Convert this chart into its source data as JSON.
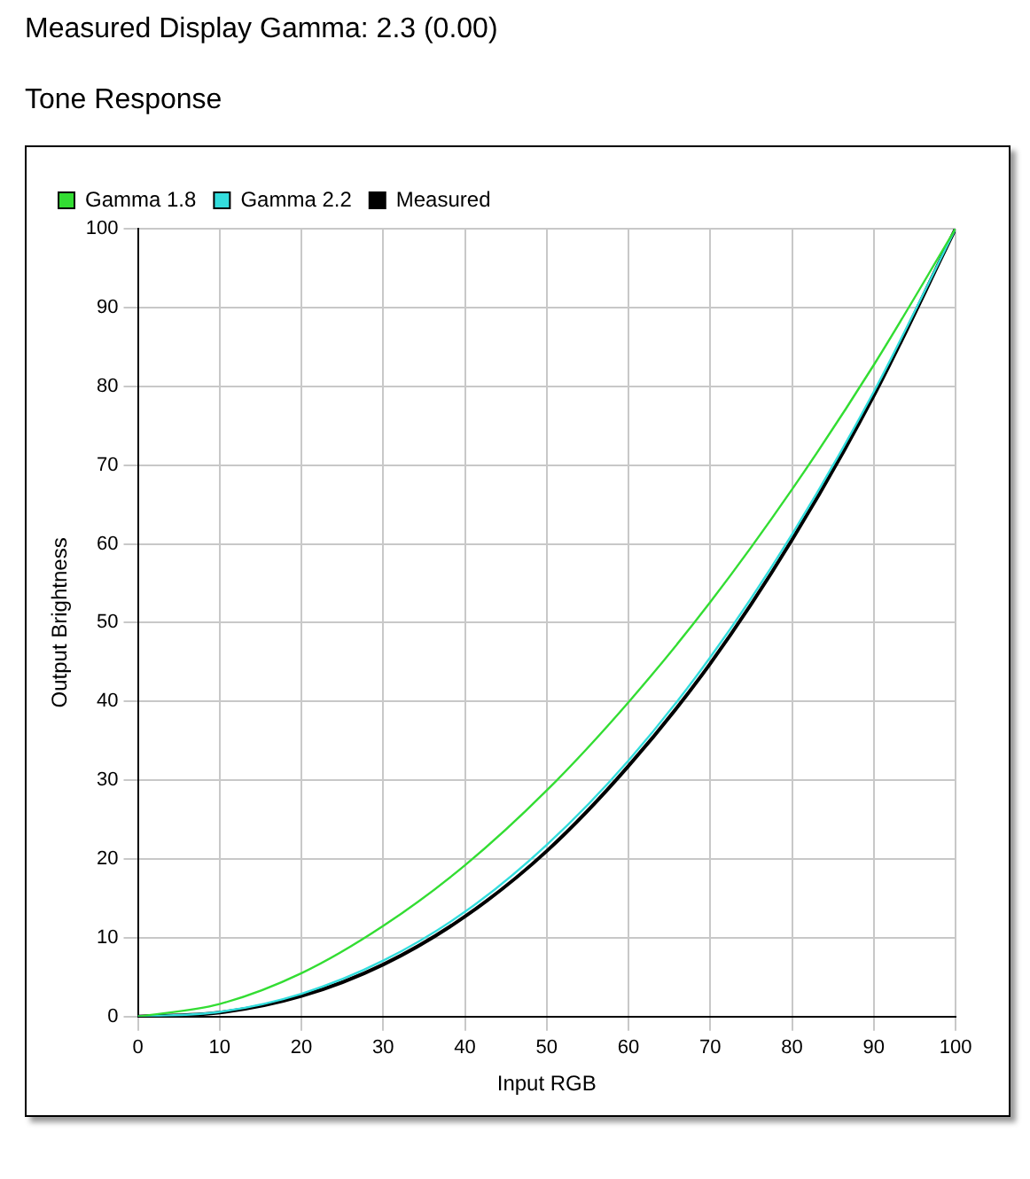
{
  "chart_data": {
    "type": "line",
    "title": "Measured Display Gamma: 2.3 (0.00)",
    "subtitle": "Tone Response",
    "xlabel": "Input RGB",
    "ylabel": "Output Brightness",
    "x": [
      0,
      10,
      20,
      30,
      40,
      50,
      60,
      70,
      80,
      90,
      100
    ],
    "series": [
      {
        "name": "Gamma 1.8",
        "color": "#33dd33",
        "values": [
          0,
          1.6,
          5.5,
          11.5,
          19.2,
          28.7,
          39.9,
          52.6,
          66.9,
          82.7,
          100
        ]
      },
      {
        "name": "Gamma 2.2",
        "color": "#33dddd",
        "values": [
          0,
          0.6,
          2.9,
          7.1,
          13.3,
          21.8,
          32.5,
          45.6,
          61.2,
          79.3,
          100
        ]
      },
      {
        "name": "Measured",
        "color": "#000000",
        "values": [
          0,
          0.5,
          2.6,
          6.6,
          12.7,
          21,
          31.8,
          44.8,
          60.5,
          78.8,
          100
        ]
      }
    ],
    "xlim": [
      0,
      100
    ],
    "xticks": [
      0,
      10,
      20,
      30,
      40,
      50,
      60,
      70,
      80,
      90,
      100
    ],
    "ylim": [
      0,
      100
    ],
    "yticks": [
      0,
      10,
      20,
      30,
      40,
      50,
      60,
      70,
      80,
      90,
      100
    ],
    "grid": true,
    "legend": "top left",
    "marker": "none",
    "line_style": "solid"
  }
}
